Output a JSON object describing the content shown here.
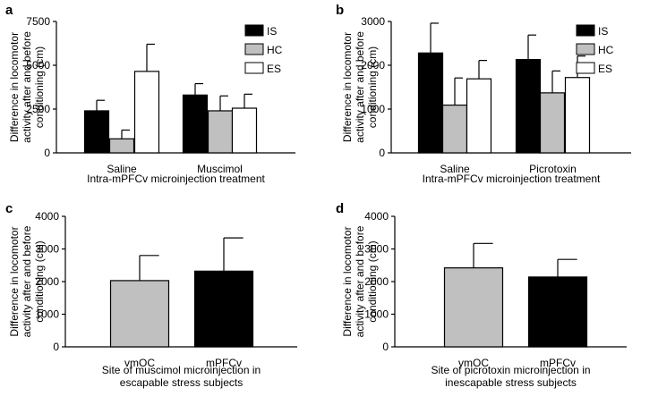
{
  "colors": {
    "IS": "#000000",
    "HC": "#c0c0c0",
    "ES": "#ffffff"
  },
  "chart_data": [
    {
      "panel": "a",
      "type": "bar",
      "ylabel": [
        "Difference in locomotor",
        "activity after and before",
        "conditioning (cm)"
      ],
      "xlabel": [
        "Intra-mPFCv microinjection treatment"
      ],
      "ylim": [
        0,
        7500
      ],
      "yticks": [
        0,
        2500,
        5000,
        7500
      ],
      "categories": [
        "Saline",
        "Muscimol"
      ],
      "series": [
        {
          "name": "IS",
          "values": [
            2400,
            3300
          ],
          "errors": [
            600,
            650
          ]
        },
        {
          "name": "HC",
          "values": [
            800,
            2400
          ],
          "errors": [
            500,
            850
          ]
        },
        {
          "name": "ES",
          "values": [
            4650,
            2550
          ],
          "errors": [
            1550,
            800
          ]
        }
      ],
      "legend": "top-right"
    },
    {
      "panel": "b",
      "type": "bar",
      "ylabel": [
        "Difference in locomotor",
        "activity after and before",
        "conditioning (cm)"
      ],
      "xlabel": [
        "Intra-mPFCv microinjection treatment"
      ],
      "ylim": [
        0,
        3000
      ],
      "yticks": [
        0,
        1000,
        2000,
        3000
      ],
      "categories": [
        "Saline",
        "Picrotoxin"
      ],
      "series": [
        {
          "name": "IS",
          "values": [
            2280,
            2130
          ],
          "errors": [
            680,
            560
          ]
        },
        {
          "name": "HC",
          "values": [
            1090,
            1370
          ],
          "errors": [
            620,
            500
          ]
        },
        {
          "name": "ES",
          "values": [
            1690,
            1720
          ],
          "errors": [
            420,
            490
          ]
        }
      ],
      "legend": "top-right"
    },
    {
      "panel": "c",
      "type": "bar",
      "ylabel": [
        "Difference in locomotor",
        "activity after and before",
        "conditioning (cm)"
      ],
      "xlabel": [
        "Site of muscimol microinjection in",
        "escapable stress subjects"
      ],
      "ylim": [
        0,
        4000
      ],
      "yticks": [
        0,
        1000,
        2000,
        3000,
        4000
      ],
      "categories": [
        "vmOC",
        "mPFCv"
      ],
      "values": [
        2030,
        2320
      ],
      "errors": [
        770,
        1020
      ],
      "bar_colors": [
        "#c0c0c0",
        "#000000"
      ]
    },
    {
      "panel": "d",
      "type": "bar",
      "ylabel": [
        "Difference in locomotor",
        "activity after and before",
        "conditioning (cm)"
      ],
      "xlabel": [
        "Site of picrotoxin microinjection in",
        "inescapable stress subjects"
      ],
      "ylim": [
        0,
        4000
      ],
      "yticks": [
        0,
        1000,
        2000,
        3000,
        4000
      ],
      "categories": [
        "vmOC",
        "mPFCv"
      ],
      "values": [
        2420,
        2140
      ],
      "errors": [
        750,
        540
      ],
      "bar_colors": [
        "#c0c0c0",
        "#000000"
      ]
    }
  ]
}
